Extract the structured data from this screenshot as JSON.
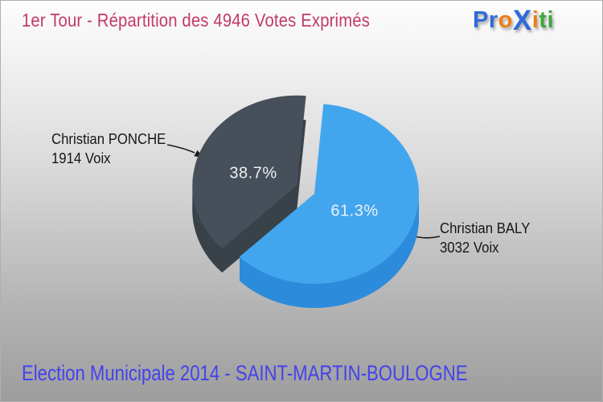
{
  "header": {
    "title": "1er Tour - Répartition des 4946 Votes Exprimés"
  },
  "logo": {
    "text": "Proxiti",
    "letters": [
      {
        "ch": "P",
        "color": "#2f6bd8"
      },
      {
        "ch": "r",
        "color": "#2f6bd8"
      },
      {
        "ch": "o",
        "color": "#f07d12"
      },
      {
        "ch": "X",
        "color": "#2f6bd8",
        "big": true
      },
      {
        "ch": "i",
        "color": "#f07d12"
      },
      {
        "ch": "t",
        "color": "#3fa73c"
      },
      {
        "ch": "i",
        "color": "#3fa73c"
      }
    ]
  },
  "chart_data": {
    "type": "pie",
    "title": "1er Tour - Répartition des 4946 Votes Exprimés",
    "total_votes": 4946,
    "unit": "Voix",
    "legend_position": "none",
    "labels_on_slices": true,
    "style": "3d-exploded",
    "slices": [
      {
        "label": "Christian BALY",
        "votes": 3032,
        "votes_label": "3032 Voix",
        "pct": 61.3,
        "pct_label": "61.3%",
        "color": "#42a6ef",
        "side_color": "#2c8cdb"
      },
      {
        "label": "Christian PONCHE",
        "votes": 1914,
        "votes_label": "1914 Voix",
        "pct": 38.7,
        "pct_label": "38.7%",
        "color": "#47505a",
        "side_color": "#394149"
      }
    ]
  },
  "footer": {
    "text": "Election Municipale 2014 - SAINT-MARTIN-BOULOGNE"
  }
}
